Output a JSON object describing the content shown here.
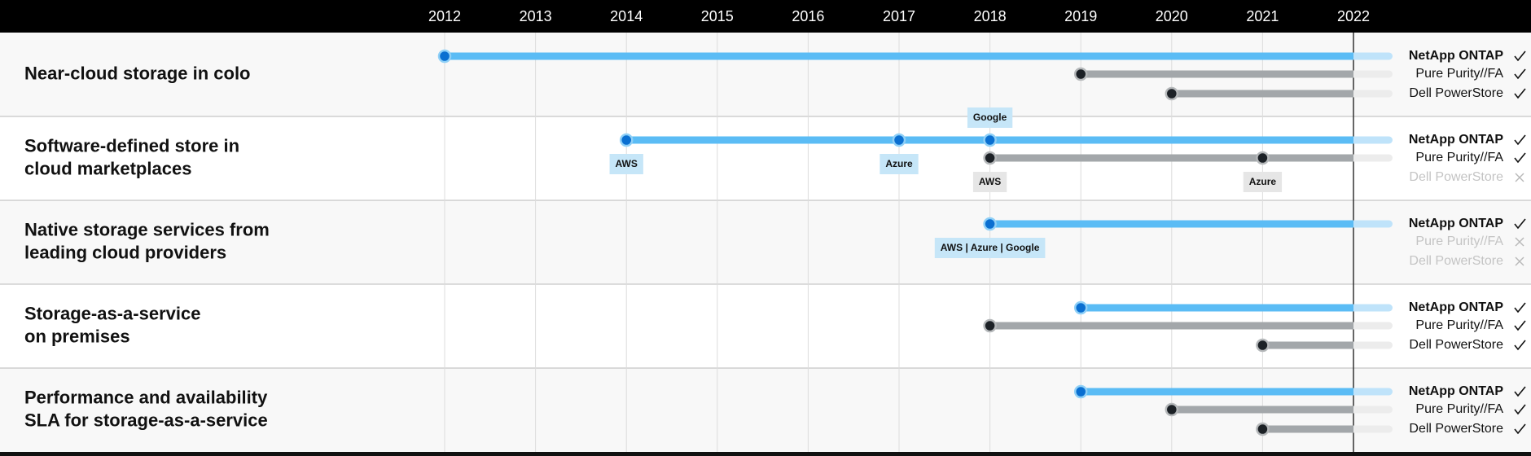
{
  "chart_data": {
    "type": "timeline",
    "xlim": [
      2012,
      2022
    ],
    "xticks": [
      2012,
      2013,
      2014,
      2015,
      2016,
      2017,
      2018,
      2019,
      2020,
      2021,
      2022
    ],
    "rows": [
      {
        "label": [
          "Near-cloud storage in colo"
        ],
        "products": [
          {
            "name": "NetApp ONTAP",
            "color": "#5bbcf5",
            "available": true,
            "points": [
              {
                "x": 2012
              }
            ]
          },
          {
            "name": "Pure Purity//FA",
            "color": "#a3a7aa",
            "available": true,
            "points": [
              {
                "x": 2019
              }
            ]
          },
          {
            "name": "Dell PowerStore",
            "color": "#a3a7aa",
            "available": true,
            "points": [
              {
                "x": 2020
              }
            ]
          }
        ]
      },
      {
        "label": [
          "Software-defined store in",
          "cloud marketplaces"
        ],
        "products": [
          {
            "name": "NetApp ONTAP",
            "color": "#5bbcf5",
            "available": true,
            "points": [
              {
                "x": 2014,
                "label": "AWS",
                "label_position": "below"
              },
              {
                "x": 2017,
                "label": "Azure",
                "label_position": "below"
              },
              {
                "x": 2018,
                "label": "Google",
                "label_position": "above"
              }
            ]
          },
          {
            "name": "Pure Purity//FA",
            "color": "#a3a7aa",
            "available": true,
            "points": [
              {
                "x": 2018,
                "label": "AWS",
                "label_position": "below"
              },
              {
                "x": 2021,
                "label": "Azure",
                "label_position": "below"
              }
            ]
          },
          {
            "name": "Dell PowerStore",
            "color": "#a3a7aa",
            "available": false,
            "points": []
          }
        ]
      },
      {
        "label": [
          "Native storage services from",
          "leading cloud providers"
        ],
        "products": [
          {
            "name": "NetApp ONTAP",
            "color": "#5bbcf5",
            "available": true,
            "points": [
              {
                "x": 2018,
                "label": "AWS | Azure | Google",
                "label_position": "below"
              }
            ]
          },
          {
            "name": "Pure Purity//FA",
            "color": "#a3a7aa",
            "available": false,
            "points": []
          },
          {
            "name": "Dell PowerStore",
            "color": "#a3a7aa",
            "available": false,
            "points": []
          }
        ]
      },
      {
        "label": [
          "Storage-as-a-service",
          "on premises"
        ],
        "products": [
          {
            "name": "NetApp ONTAP",
            "color": "#5bbcf5",
            "available": true,
            "points": [
              {
                "x": 2019
              }
            ]
          },
          {
            "name": "Pure Purity//FA",
            "color": "#a3a7aa",
            "available": true,
            "points": [
              {
                "x": 2018
              }
            ]
          },
          {
            "name": "Dell PowerStore",
            "color": "#a3a7aa",
            "available": true,
            "points": [
              {
                "x": 2021
              }
            ]
          }
        ]
      },
      {
        "label": [
          "Performance and availability",
          "SLA for storage-as-a-service"
        ],
        "products": [
          {
            "name": "NetApp ONTAP",
            "color": "#5bbcf5",
            "available": true,
            "points": [
              {
                "x": 2019
              }
            ]
          },
          {
            "name": "Pure Purity//FA",
            "color": "#a3a7aa",
            "available": true,
            "points": [
              {
                "x": 2020
              }
            ]
          },
          {
            "name": "Dell PowerStore",
            "color": "#a3a7aa",
            "available": true,
            "points": [
              {
                "x": 2021
              }
            ]
          }
        ]
      }
    ]
  }
}
